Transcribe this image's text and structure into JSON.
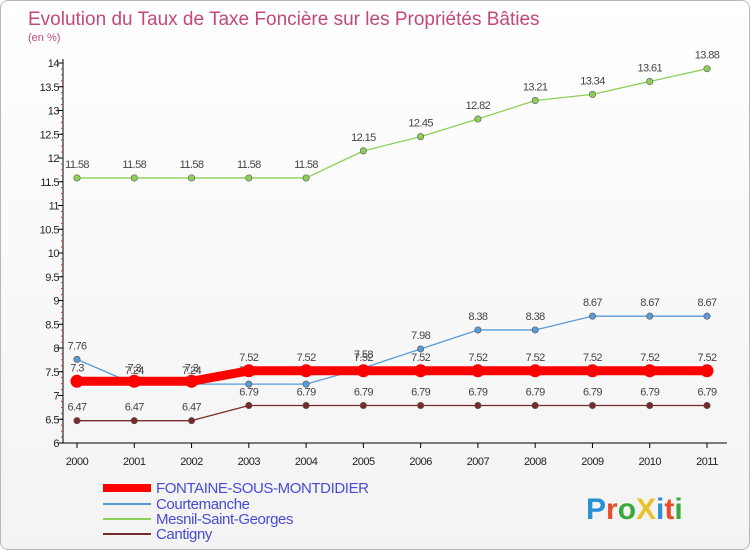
{
  "chart_data": {
    "type": "line",
    "title": "Evolution du Taux de Taxe Foncière sur les Propriétés Bâties",
    "subtitle": "(en %)",
    "x": [
      "2000",
      "2001",
      "2002",
      "2003",
      "2004",
      "2005",
      "2006",
      "2007",
      "2008",
      "2009",
      "2010",
      "2011"
    ],
    "ylim": [
      6,
      14
    ],
    "yticks": [
      "6",
      "6.5",
      "7",
      "7.5",
      "8",
      "8.5",
      "9",
      "9.5",
      "10",
      "10.5",
      "11",
      "11.5",
      "12",
      "12.5",
      "13",
      "13.5",
      "14"
    ],
    "series": [
      {
        "name": "FONTAINE-SOUS-MONTDIDIER",
        "color": "#ff0000",
        "values": [
          7.3,
          7.3,
          7.3,
          7.52,
          7.52,
          7.52,
          7.52,
          7.52,
          7.52,
          7.52,
          7.52,
          7.52
        ],
        "labels": [
          "7.3",
          "7.3",
          "7.3",
          "7.52",
          "7.52",
          "7.52",
          "7.52",
          "7.52",
          "7.52",
          "7.52",
          "7.52",
          "7.52"
        ]
      },
      {
        "name": "Courtemanche",
        "color": "#5a9bd5",
        "values": [
          7.76,
          7.24,
          7.24,
          7.24,
          7.24,
          7.58,
          7.98,
          8.38,
          8.38,
          8.67,
          8.67,
          8.67
        ],
        "labels": [
          "7.76",
          "7.24",
          "7.24",
          "7.24",
          "7.24",
          "7.58",
          "7.98",
          "8.38",
          "8.38",
          "8.67",
          "8.67",
          "8.67"
        ]
      },
      {
        "name": "Mesnil-Saint-Georges",
        "color": "#8ecf5a",
        "values": [
          11.58,
          11.58,
          11.58,
          11.58,
          11.58,
          12.15,
          12.45,
          12.82,
          13.21,
          13.34,
          13.61,
          13.88
        ],
        "labels": [
          "11.58",
          "11.58",
          "11.58",
          "11.58",
          "11.58",
          "12.15",
          "12.45",
          "12.82",
          "13.21",
          "13.34",
          "13.61",
          "13.88"
        ]
      },
      {
        "name": "Cantigny",
        "color": "#7a2a2a",
        "values": [
          6.47,
          6.47,
          6.47,
          6.79,
          6.79,
          6.79,
          6.79,
          6.79,
          6.79,
          6.79,
          6.79,
          6.79
        ],
        "labels": [
          "6.47",
          "6.47",
          "6.47",
          "6.79",
          "6.79",
          "6.79",
          "6.79",
          "6.79",
          "6.79",
          "6.79",
          "6.79",
          "6.79"
        ]
      }
    ],
    "legend_position": "bottom-left"
  },
  "logo": {
    "text": "ProXiti",
    "letters": [
      "P",
      "r",
      "o",
      "X",
      "i",
      "t",
      "i"
    ],
    "colors": [
      "#2a8fd4",
      "#e84d2a",
      "#3aa83a",
      "#e8c22a",
      "#2a8fd4",
      "#e84d2a",
      "#3aa83a"
    ]
  }
}
